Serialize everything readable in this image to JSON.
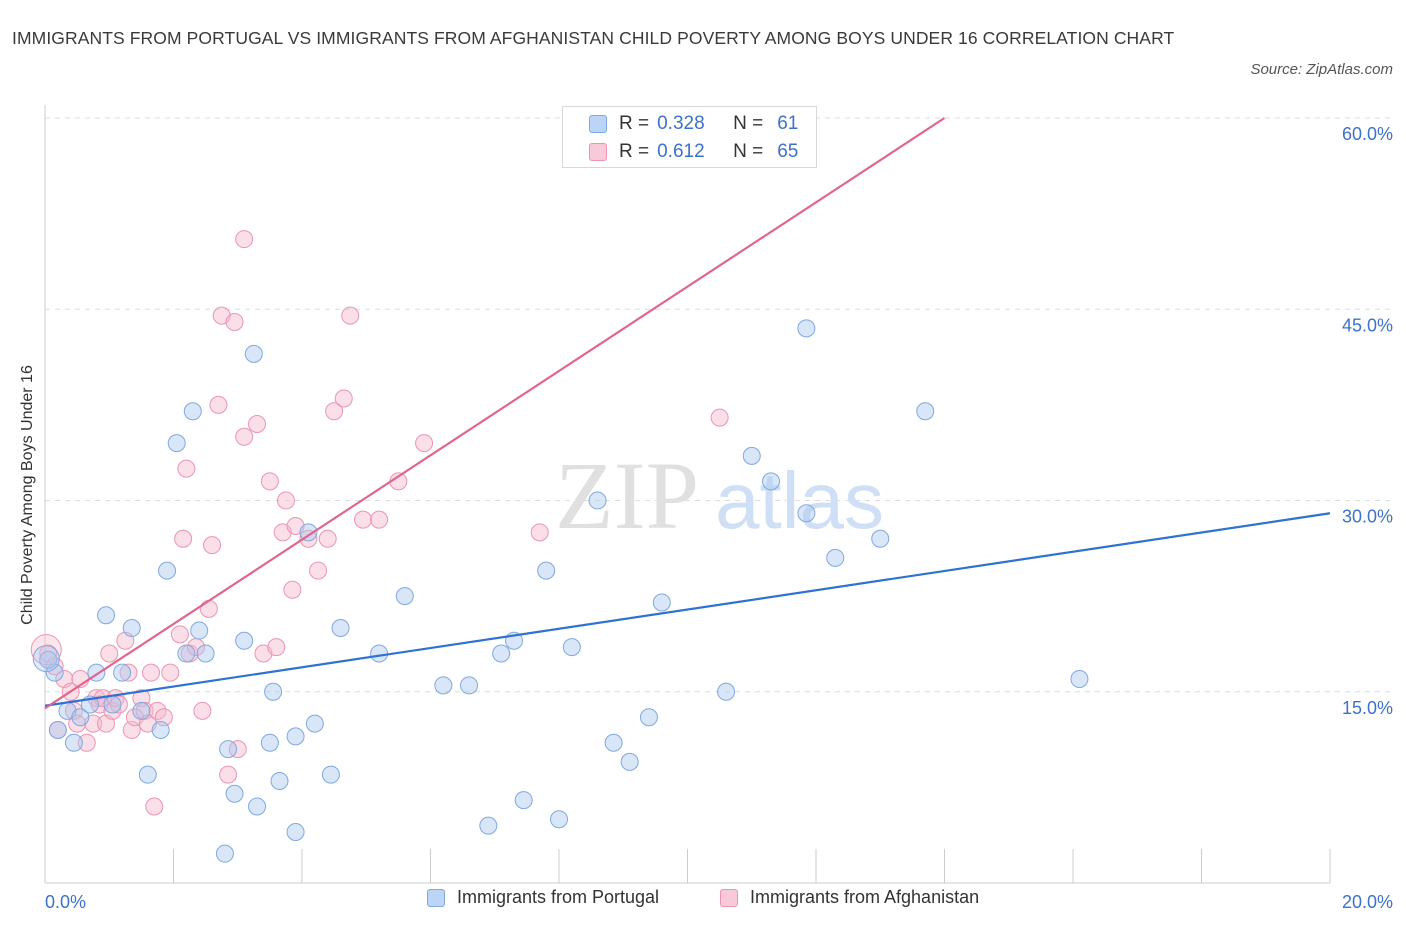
{
  "title": "IMMIGRANTS FROM PORTUGAL VS IMMIGRANTS FROM AFGHANISTAN CHILD POVERTY AMONG BOYS UNDER 16 CORRELATION CHART",
  "source": "Source: ZipAtlas.com",
  "watermark": {
    "zip": "ZIP",
    "atlas": "atlas"
  },
  "stats": [
    {
      "r_label": "R =",
      "r_value": "0.328",
      "n_label": "N =",
      "n_value": "61"
    },
    {
      "r_label": "R =",
      "r_value": "0.612",
      "n_label": "N =",
      "n_value": "65"
    }
  ],
  "colors": {
    "blue_fill": "#a9c8f0",
    "blue_stroke": "#7fa9e0",
    "blue_line": "#2f72d2",
    "pink_fill": "#f5b8cb",
    "pink_stroke": "#ec95b1",
    "pink_line": "#e0658f",
    "tick_label": "#3d72c9",
    "grid": "#dcdcdc"
  },
  "chart_data": {
    "type": "scatter",
    "xlabel": "",
    "ylabel": "Child Poverty Among Boys Under 16",
    "xlim": [
      0,
      20
    ],
    "ylim": [
      0,
      60
    ],
    "x_tick_labels": [
      "0.0%",
      "20.0%"
    ],
    "y_ticks": [
      15,
      30,
      45,
      60
    ],
    "y_tick_labels": [
      "15.0%",
      "30.0%",
      "45.0%",
      "60.0%"
    ],
    "grid": true,
    "legend_position": "bottom",
    "series": [
      {
        "name": "Immigrants from Portugal",
        "color": "blue",
        "trend": {
          "x": [
            0,
            20
          ],
          "y": [
            13.9,
            29.0
          ]
        },
        "points": [
          [
            0.15,
            16.5
          ],
          [
            0.2,
            12.0
          ],
          [
            0.35,
            13.5
          ],
          [
            0.45,
            11.0
          ],
          [
            0.55,
            13.0
          ],
          [
            0.7,
            14.0
          ],
          [
            0.8,
            16.5
          ],
          [
            0.95,
            21.0
          ],
          [
            1.05,
            14.0
          ],
          [
            1.2,
            16.5
          ],
          [
            1.35,
            20.0
          ],
          [
            1.5,
            13.5
          ],
          [
            1.6,
            8.5
          ],
          [
            1.8,
            12.0
          ],
          [
            1.9,
            24.5
          ],
          [
            2.05,
            34.5
          ],
          [
            2.2,
            18.0
          ],
          [
            2.3,
            37.0
          ],
          [
            2.4,
            19.8
          ],
          [
            2.5,
            18.0
          ],
          [
            2.8,
            2.3
          ],
          [
            2.85,
            10.5
          ],
          [
            2.95,
            7.0
          ],
          [
            3.1,
            19.0
          ],
          [
            3.25,
            41.5
          ],
          [
            3.3,
            6.0
          ],
          [
            3.5,
            11.0
          ],
          [
            3.55,
            15.0
          ],
          [
            3.65,
            8.0
          ],
          [
            3.9,
            11.5
          ],
          [
            3.9,
            4.0
          ],
          [
            4.1,
            27.5
          ],
          [
            4.2,
            12.5
          ],
          [
            4.45,
            8.5
          ],
          [
            4.6,
            20.0
          ],
          [
            5.2,
            18.0
          ],
          [
            5.6,
            22.5
          ],
          [
            6.2,
            15.5
          ],
          [
            6.6,
            15.5
          ],
          [
            6.9,
            4.5
          ],
          [
            7.1,
            18.0
          ],
          [
            7.3,
            19.0
          ],
          [
            7.45,
            6.5
          ],
          [
            7.8,
            24.5
          ],
          [
            8.0,
            5.0
          ],
          [
            8.2,
            18.5
          ],
          [
            8.6,
            30.0
          ],
          [
            8.85,
            11.0
          ],
          [
            9.1,
            9.5
          ],
          [
            9.4,
            13.0
          ],
          [
            9.6,
            22.0
          ],
          [
            10.6,
            15.0
          ],
          [
            11.0,
            33.5
          ],
          [
            11.3,
            31.5
          ],
          [
            11.85,
            29.0
          ],
          [
            11.85,
            43.5
          ],
          [
            12.3,
            25.5
          ],
          [
            13.0,
            27.0
          ],
          [
            13.7,
            37.0
          ],
          [
            16.1,
            16.0
          ],
          [
            0.05,
            17.5
          ]
        ]
      },
      {
        "name": "Immigrants from Afghanistan",
        "color": "pink",
        "trend": {
          "x": [
            0,
            14.0
          ],
          "y": [
            13.7,
            60.0
          ]
        },
        "points": [
          [
            0.05,
            18.0
          ],
          [
            0.15,
            17.0
          ],
          [
            0.2,
            12.0
          ],
          [
            0.3,
            16.0
          ],
          [
            0.4,
            15.0
          ],
          [
            0.45,
            13.5
          ],
          [
            0.5,
            12.5
          ],
          [
            0.55,
            16.0
          ],
          [
            0.65,
            11.0
          ],
          [
            0.75,
            12.5
          ],
          [
            0.8,
            14.5
          ],
          [
            0.85,
            14.0
          ],
          [
            0.9,
            14.5
          ],
          [
            0.95,
            12.5
          ],
          [
            1.0,
            18.0
          ],
          [
            1.05,
            13.5
          ],
          [
            1.1,
            14.5
          ],
          [
            1.15,
            14.0
          ],
          [
            1.25,
            19.0
          ],
          [
            1.3,
            16.5
          ],
          [
            1.35,
            12.0
          ],
          [
            1.4,
            13.0
          ],
          [
            1.5,
            14.5
          ],
          [
            1.55,
            13.5
          ],
          [
            1.6,
            12.5
          ],
          [
            1.65,
            16.5
          ],
          [
            1.7,
            6.0
          ],
          [
            1.75,
            13.5
          ],
          [
            1.85,
            13.0
          ],
          [
            1.95,
            16.5
          ],
          [
            2.1,
            19.5
          ],
          [
            2.15,
            27.0
          ],
          [
            2.2,
            32.5
          ],
          [
            2.25,
            18.0
          ],
          [
            2.35,
            18.5
          ],
          [
            2.45,
            13.5
          ],
          [
            2.55,
            21.5
          ],
          [
            2.6,
            26.5
          ],
          [
            2.7,
            37.5
          ],
          [
            2.75,
            44.5
          ],
          [
            2.85,
            8.5
          ],
          [
            2.95,
            44.0
          ],
          [
            3.0,
            10.5
          ],
          [
            3.1,
            50.5
          ],
          [
            3.1,
            35.0
          ],
          [
            3.3,
            36.0
          ],
          [
            3.4,
            18.0
          ],
          [
            3.5,
            31.5
          ],
          [
            3.6,
            18.5
          ],
          [
            3.7,
            27.5
          ],
          [
            3.75,
            30.0
          ],
          [
            3.85,
            23.0
          ],
          [
            3.9,
            28.0
          ],
          [
            4.1,
            27.0
          ],
          [
            4.25,
            24.5
          ],
          [
            4.4,
            27.0
          ],
          [
            4.5,
            37.0
          ],
          [
            4.65,
            38.0
          ],
          [
            4.75,
            44.5
          ],
          [
            4.95,
            28.5
          ],
          [
            5.2,
            28.5
          ],
          [
            5.5,
            31.5
          ],
          [
            5.9,
            34.5
          ],
          [
            7.7,
            27.5
          ],
          [
            10.5,
            36.5
          ]
        ]
      }
    ]
  }
}
